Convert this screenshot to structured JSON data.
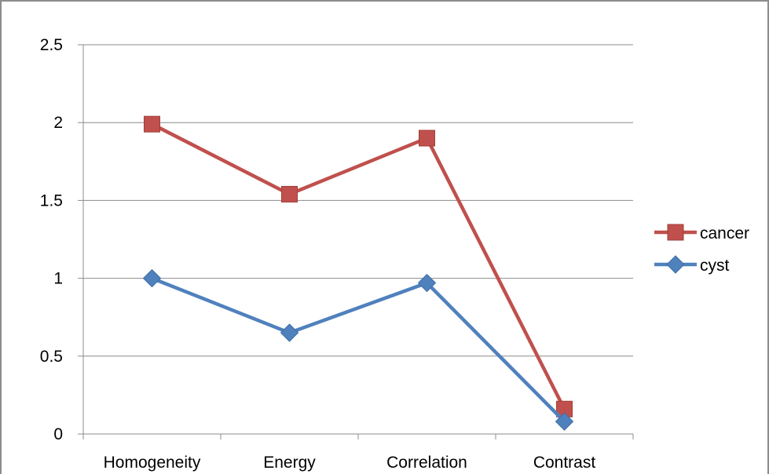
{
  "chart_data": {
    "type": "line",
    "categories": [
      "Homogeneity",
      "Energy",
      "Correlation",
      "Contrast"
    ],
    "series": [
      {
        "name": "cancer",
        "values": [
          1.99,
          1.54,
          1.9,
          0.16
        ],
        "color": "#c0504d",
        "marker": "square"
      },
      {
        "name": "cyst",
        "values": [
          1.0,
          0.65,
          0.97,
          0.08
        ],
        "color": "#4f81bd",
        "marker": "diamond"
      }
    ],
    "ylim": [
      0,
      2.5
    ],
    "yticks": [
      "0",
      "0.5",
      "1",
      "1.5",
      "2",
      "2.5"
    ],
    "grid": true,
    "legend_position": "right"
  }
}
